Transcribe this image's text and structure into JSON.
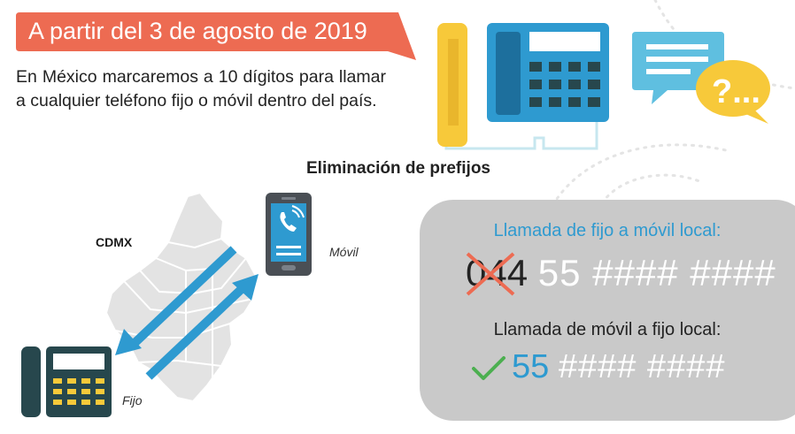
{
  "banner": {
    "text": "A partir del 3 de agosto de 2019",
    "color": "#ed6b52"
  },
  "intro": {
    "text": "En México marcaremos a 10 dígitos para llamar a cualquier teléfono fijo o móvil dentro del país."
  },
  "section": {
    "title": "Eliminación de prefijos"
  },
  "map": {
    "region_label": "CDMX",
    "mobile_label": "Móvil",
    "landline_label": "Fijo"
  },
  "call_fixed_to_mobile": {
    "title": "Llamada de fijo a móvil local:",
    "prefix": "044",
    "number": "55 #### ####"
  },
  "call_mobile_to_fixed": {
    "title": "Llamada de móvil a fijo local:",
    "area_code": "55",
    "number": "#### ####"
  },
  "colors": {
    "accent_blue": "#2e9ad0",
    "banner_orange": "#ed6b52",
    "yellow": "#f7c93a",
    "dark_teal": "#27474d",
    "panel_gray": "#c9c9c9"
  },
  "icons": [
    "desk-phone-icon",
    "chat-bubble-icon",
    "question-bubble-icon",
    "mobile-phone-icon",
    "landline-phone-icon",
    "cross-icon",
    "checkmark-icon"
  ]
}
